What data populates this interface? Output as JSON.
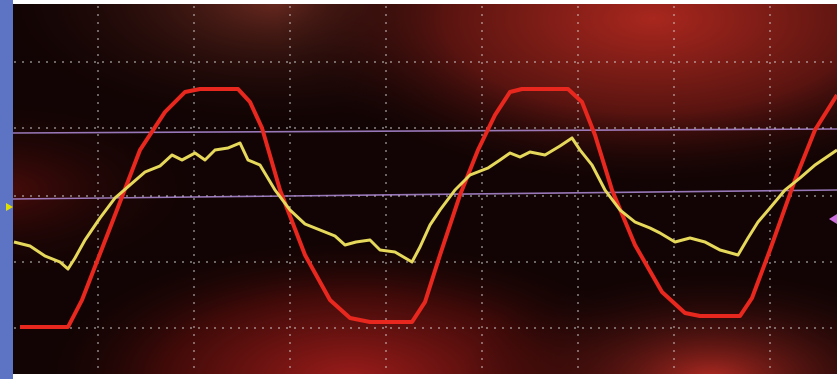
{
  "image": {
    "subject": "oscilloscope-screen-photo",
    "traces": [
      {
        "name": "red-trace",
        "color": "#e8281e",
        "shape": "clipped-sine"
      },
      {
        "name": "yellow-trace",
        "color": "#e6d85a",
        "shape": "noisy-sine"
      }
    ],
    "cursor_line_color": "#b08cd8",
    "grid_color": "#d8d8d8",
    "left_marker_color": "#e0e000",
    "right_marker_color": "#d070e0"
  }
}
